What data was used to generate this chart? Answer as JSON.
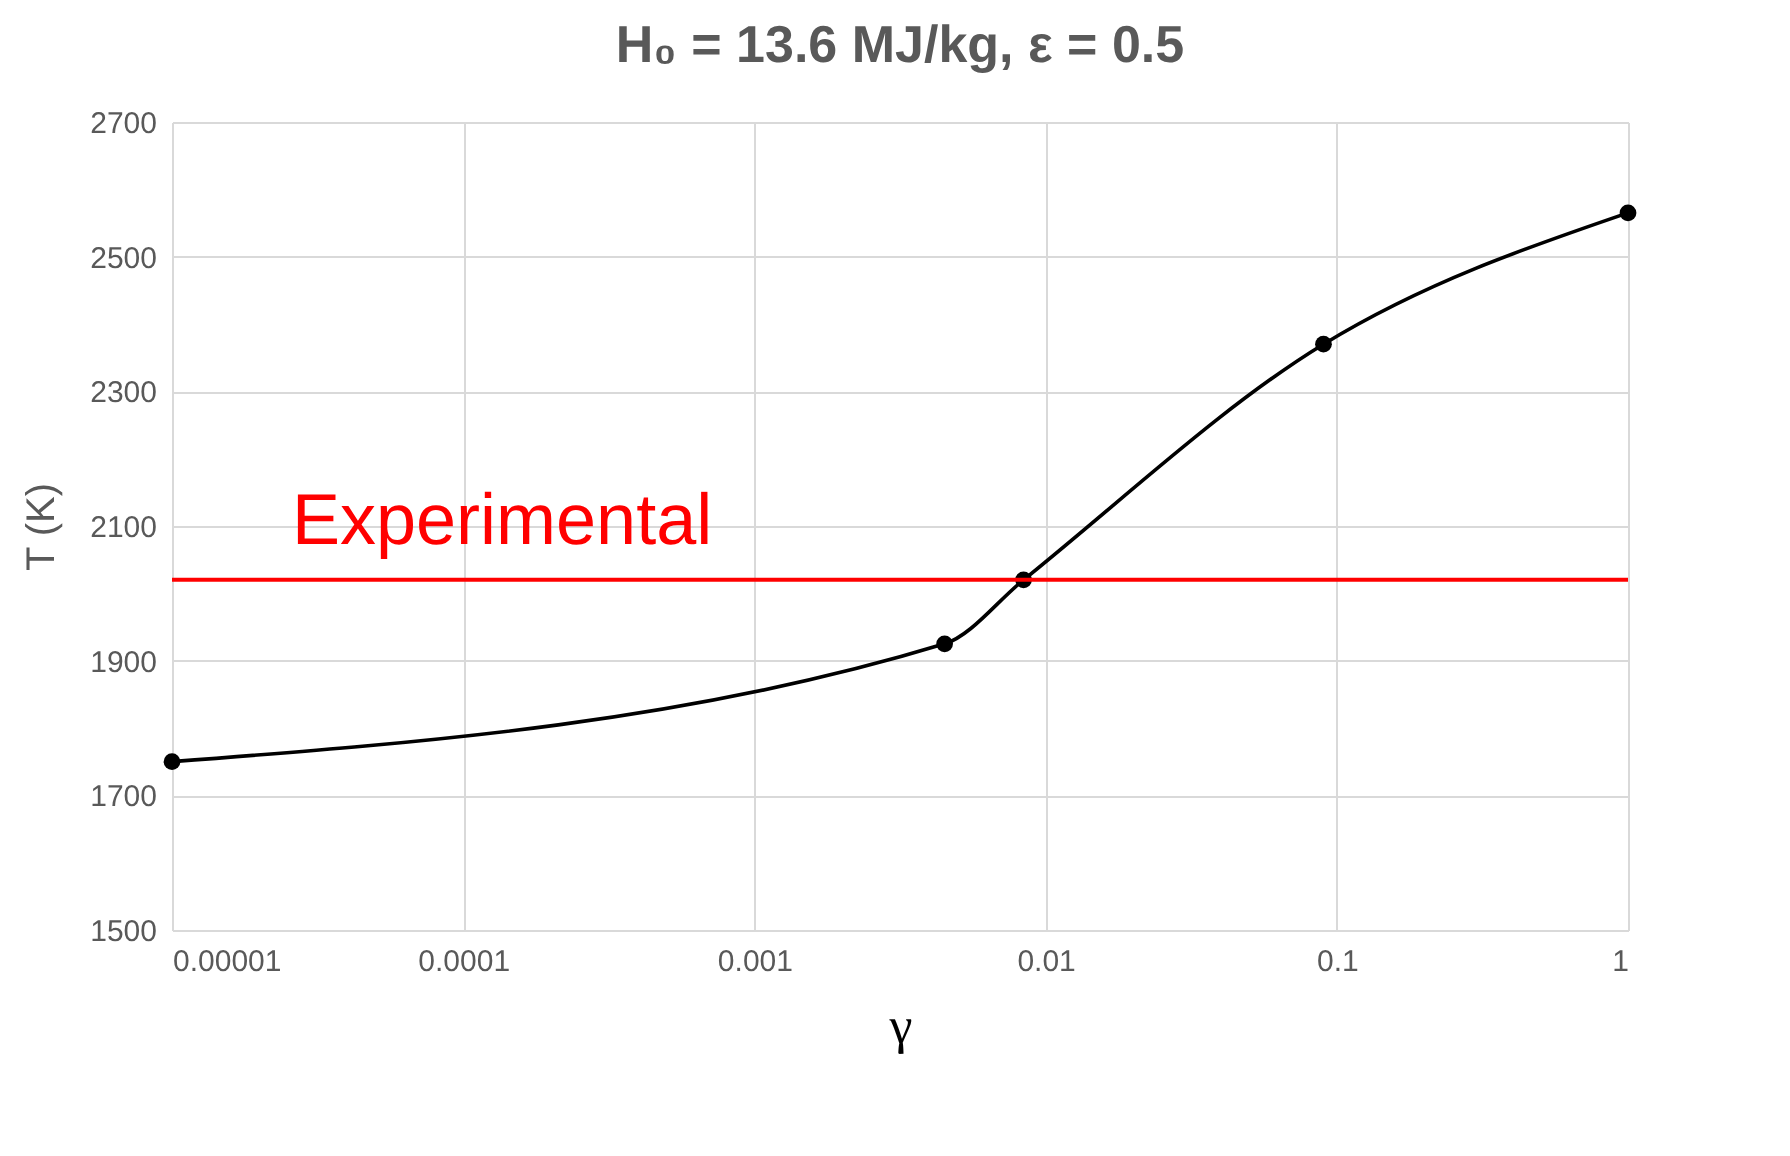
{
  "chart_data": {
    "type": "line",
    "title": "H₀ = 13.6 MJ/kg, ε = 0.5",
    "xlabel": "γ",
    "ylabel": "T (K)",
    "x": [
      1e-05,
      0.0045,
      0.0084,
      0.09,
      1
    ],
    "series": [
      {
        "color": "#000000",
        "values": [
          1750,
          1925,
          2020,
          2370,
          2565
        ]
      }
    ],
    "log": "x",
    "xlim": [
      1e-05,
      1
    ],
    "xticks": [
      {
        "value": 1e-05,
        "label": "0.00001"
      },
      {
        "value": 0.0001,
        "label": "0.0001"
      },
      {
        "value": 0.001,
        "label": "0.001"
      },
      {
        "value": 0.01,
        "label": "0.01"
      },
      {
        "value": 0.1,
        "label": "0.1"
      },
      {
        "value": 1,
        "label": "1"
      }
    ],
    "ylim": [
      1500,
      2700
    ],
    "yticks": [
      1500,
      1700,
      1900,
      2100,
      2300,
      2500,
      2700
    ],
    "grid": true,
    "marker": "circle",
    "line_style": "solid",
    "ref_lines": [
      {
        "axis": "y",
        "value": 2020,
        "label": "Experimental",
        "color": "#ff0000"
      }
    ]
  }
}
